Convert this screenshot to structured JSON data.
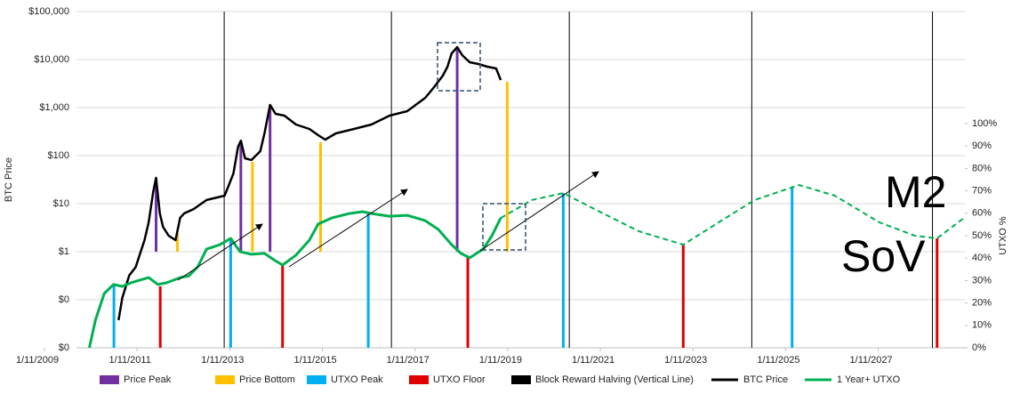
{
  "chart_data": {
    "type": "line",
    "y_axis_label": "BTC Price",
    "y2_axis_label": "UTXO %",
    "log_y": true,
    "grid": true,
    "xlim": [
      2009.03,
      2028.9
    ],
    "xticks": [
      {
        "value": 2009.03,
        "label": "1/11/2009"
      },
      {
        "value": 2011.03,
        "label": "1/11/2011"
      },
      {
        "value": 2013.03,
        "label": "1/11/2013"
      },
      {
        "value": 2015.03,
        "label": "1/11/2015"
      },
      {
        "value": 2017.03,
        "label": "1/11/2017"
      },
      {
        "value": 2019.03,
        "label": "1/11/2019"
      },
      {
        "value": 2021.03,
        "label": "1/11/2021"
      },
      {
        "value": 2023.03,
        "label": "1/11/2023"
      },
      {
        "value": 2025.03,
        "label": "1/11/2025"
      },
      {
        "value": 2027.03,
        "label": "1/11/2027"
      }
    ],
    "ylim": [
      0.01,
      100000
    ],
    "yticks": [
      {
        "value": 0.01,
        "label": "$0"
      },
      {
        "value": 0.1,
        "label": "$0"
      },
      {
        "value": 1,
        "label": "$1"
      },
      {
        "value": 10,
        "label": "$10"
      },
      {
        "value": 100,
        "label": "$100"
      },
      {
        "value": 1000,
        "label": "$1,000"
      },
      {
        "value": 10000,
        "label": "$10,000"
      },
      {
        "value": 100000,
        "label": "$100,000"
      }
    ],
    "y2lim": [
      0,
      150
    ],
    "y2ticks": [
      {
        "value": 0,
        "label": "0%"
      },
      {
        "value": 10,
        "label": "10%"
      },
      {
        "value": 20,
        "label": "20%"
      },
      {
        "value": 30,
        "label": "30%"
      },
      {
        "value": 40,
        "label": "40%"
      },
      {
        "value": 50,
        "label": "50%"
      },
      {
        "value": 60,
        "label": "60%"
      },
      {
        "value": 70,
        "label": "70%"
      },
      {
        "value": 80,
        "label": "80%"
      },
      {
        "value": 90,
        "label": "90%"
      },
      {
        "value": 100,
        "label": "100%"
      }
    ],
    "annotations": [
      "M2",
      "SoV"
    ],
    "series": [
      {
        "name": "Price Peak",
        "color": "#7030a0",
        "mark": "vline",
        "base": 1,
        "x": [
          2011.44,
          2013.27,
          2013.9,
          2017.94
        ],
        "values": [
          34.4,
          205,
          1137,
          18200
        ]
      },
      {
        "name": "Price Bottom",
        "color": "#ffc000",
        "mark": "vline",
        "base": 1,
        "x": [
          2011.9,
          2013.52,
          2014.99,
          2019.02
        ],
        "values": [
          2.45,
          74,
          190,
          3460
        ]
      },
      {
        "name": "UTXO Peak",
        "color": "#00b0f0",
        "mark": "vline",
        "axis": "y2",
        "base": 0,
        "x": [
          2010.53,
          2013.05,
          2016.02,
          2020.23,
          2025.17
        ],
        "values": [
          28.2,
          48.8,
          60.7,
          69,
          71.8
        ]
      },
      {
        "name": "UTXO Floor",
        "color": "#e00000",
        "mark": "vline",
        "axis": "y2",
        "base": 0,
        "x": [
          2011.53,
          2014.17,
          2018.17,
          2022.82,
          2028.3
        ],
        "values": [
          27.4,
          36.9,
          40.1,
          46,
          48.8
        ]
      },
      {
        "name": "Block Reward Halving (Vertical Line)",
        "color": "#000000",
        "mark": "halving",
        "x": [
          2012.91,
          2016.52,
          2020.36,
          2024.3,
          2028.2
        ]
      },
      {
        "name": "BTC Price",
        "color": "#000000",
        "mark": "line",
        "x": [
          2010.63,
          2010.71,
          2010.86,
          2011.0,
          2011.19,
          2011.28,
          2011.38,
          2011.44,
          2011.52,
          2011.59,
          2011.71,
          2011.86,
          2011.96,
          2012.05,
          2012.25,
          2012.53,
          2012.92,
          2013.11,
          2013.21,
          2013.27,
          2013.36,
          2013.5,
          2013.69,
          2013.78,
          2013.9,
          2014.02,
          2014.21,
          2014.46,
          2014.75,
          2014.94,
          2015.09,
          2015.32,
          2015.71,
          2016.09,
          2016.48,
          2016.86,
          2017.25,
          2017.44,
          2017.63,
          2017.73,
          2017.82,
          2017.94,
          2018.05,
          2018.21,
          2018.4,
          2018.59,
          2018.78,
          2018.88
        ],
        "values": [
          0.0375,
          0.109,
          0.32,
          0.48,
          1.74,
          4.1,
          18.2,
          34.4,
          6.3,
          3.3,
          2.15,
          1.74,
          5.1,
          6.3,
          7.7,
          11.9,
          14.7,
          42.6,
          153,
          205,
          88,
          81,
          124,
          290,
          1137,
          742,
          681,
          445,
          359,
          267,
          215,
          290,
          359,
          445,
          681,
          843,
          1600,
          2667,
          4642,
          7113,
          13480,
          18200,
          12340,
          8790,
          8070,
          7113,
          6530,
          3750
        ]
      },
      {
        "name": "1 Year+ UTXO",
        "color": "#00b050",
        "mark": "line",
        "axis": "y2",
        "x": [
          2010.0,
          2010.13,
          2010.32,
          2010.52,
          2010.71,
          2010.9,
          2011.09,
          2011.28,
          2011.48,
          2011.67,
          2011.96,
          2012.15,
          2012.34,
          2012.53,
          2012.82,
          2013.05,
          2013.25,
          2013.5,
          2013.78,
          2013.98,
          2014.17,
          2014.46,
          2014.75,
          2014.94,
          2015.23,
          2015.61,
          2015.9,
          2016.09,
          2016.48,
          2016.86,
          2017.25,
          2017.53,
          2017.82,
          2018.02,
          2018.21,
          2018.5,
          2018.69,
          2018.88
        ],
        "values": [
          0,
          12.3,
          24.2,
          28.2,
          27.4,
          29,
          30.2,
          31.3,
          28.2,
          29,
          31.3,
          32.1,
          36.1,
          44,
          46,
          48.8,
          42.9,
          41.7,
          42.1,
          39.3,
          36.9,
          41.3,
          48,
          55.2,
          57.9,
          59.9,
          60.7,
          59.9,
          58.7,
          59.1,
          56.7,
          52.8,
          46,
          42.1,
          40.1,
          44,
          50,
          57.9
        ],
        "projection": {
          "x": [
            2018.88,
            2019.55,
            2020.23,
            2020.9,
            2021.86,
            2022.82,
            2023.59,
            2024.36,
            2025.32,
            2026.09,
            2027.05,
            2027.82,
            2028.3,
            2028.88
          ],
          "values": [
            57.9,
            65.9,
            69,
            61.9,
            52,
            46,
            56,
            65.9,
            72.6,
            67.9,
            56,
            50,
            48.8,
            57.9
          ]
        }
      }
    ]
  }
}
